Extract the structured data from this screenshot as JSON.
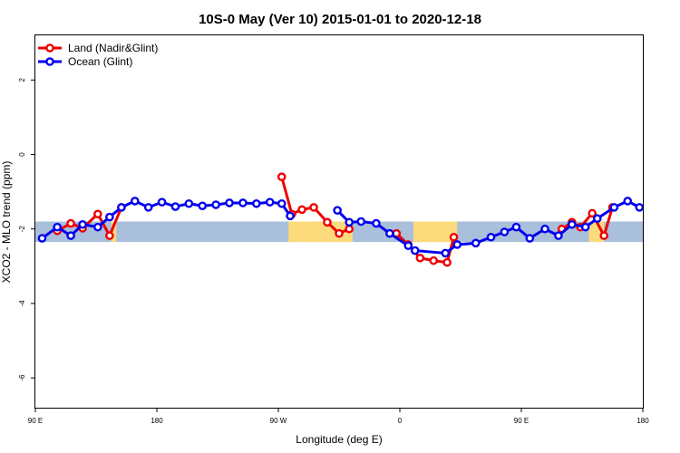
{
  "chart_data": {
    "type": "line",
    "title": "10S-0 May (Ver 10)   2015-01-01 to 2020-12-18",
    "xlabel": "Longitude (deg E)",
    "ylabel": "XCO2 - MLO trend (ppm)",
    "xlim": [
      90,
      450
    ],
    "ylim": [
      -6.8,
      3.2
    ],
    "x_ticks": [
      {
        "value": 90,
        "label": "90 E"
      },
      {
        "value": 162,
        "label": "180"
      },
      {
        "value": 234,
        "label": "90 W"
      },
      {
        "value": 306,
        "label": "0"
      },
      {
        "value": 378,
        "label": "90 E"
      },
      {
        "value": 450,
        "label": "180"
      }
    ],
    "y_ticks": [
      {
        "value": 2,
        "label": "2"
      },
      {
        "value": 0,
        "label": "0"
      },
      {
        "value": -2,
        "label": "-2"
      },
      {
        "value": -4,
        "label": "-4"
      },
      {
        "value": -6,
        "label": "-6"
      }
    ],
    "band": {
      "y_min": -2.35,
      "y_max": -1.8,
      "color": "#a9bfdc"
    },
    "land_color": "#fcdb7c",
    "land_patches": [
      {
        "x_min": 135,
        "x_max": 138
      },
      {
        "x_min": 240,
        "x_max": 278
      },
      {
        "x_min": 314,
        "x_max": 340
      },
      {
        "x_min": 418,
        "x_max": 427
      }
    ],
    "legend": {
      "position": "top-left",
      "entries": [
        {
          "name": "Land (Nadir&Glint)",
          "color": "#ee0000"
        },
        {
          "name": "Ocean (Glint)",
          "color": "#0000ee"
        }
      ]
    },
    "series": [
      {
        "name": "Land (Nadir&Glint)",
        "color": "#ee0000",
        "segments": [
          [
            [
              103,
              -2.05
            ],
            [
              111,
              -1.85
            ],
            [
              118,
              -1.98
            ],
            [
              127,
              -1.6
            ],
            [
              134,
              -2.18
            ],
            [
              141,
              -1.42
            ]
          ],
          [
            [
              236,
              -0.6
            ],
            [
              242,
              -1.6
            ],
            [
              248,
              -1.48
            ],
            [
              255,
              -1.42
            ],
            [
              263,
              -1.82
            ],
            [
              270,
              -2.12
            ],
            [
              276,
              -2.0
            ]
          ],
          [
            [
              304,
              -2.12
            ],
            [
              311,
              -2.42
            ],
            [
              318,
              -2.78
            ],
            [
              326,
              -2.85
            ],
            [
              334,
              -2.9
            ],
            [
              338,
              -2.22
            ]
          ],
          [
            [
              402,
              -2.0
            ],
            [
              408,
              -1.82
            ],
            [
              413,
              -1.95
            ],
            [
              420,
              -1.58
            ],
            [
              427,
              -2.18
            ],
            [
              432,
              -1.42
            ]
          ]
        ]
      },
      {
        "name": "Ocean (Glint)",
        "color": "#0000ee",
        "segments": [
          [
            [
              94,
              -2.25
            ],
            [
              103,
              -1.95
            ],
            [
              111,
              -2.18
            ],
            [
              118,
              -1.88
            ],
            [
              127,
              -1.95
            ],
            [
              134,
              -1.68
            ],
            [
              141,
              -1.42
            ],
            [
              149,
              -1.25
            ],
            [
              157,
              -1.42
            ],
            [
              165,
              -1.28
            ],
            [
              173,
              -1.4
            ],
            [
              181,
              -1.32
            ],
            [
              189,
              -1.38
            ],
            [
              197,
              -1.35
            ],
            [
              205,
              -1.3
            ],
            [
              213,
              -1.3
            ],
            [
              221,
              -1.32
            ],
            [
              229,
              -1.28
            ],
            [
              236,
              -1.32
            ],
            [
              241,
              -1.65
            ]
          ],
          [
            [
              269,
              -1.5
            ],
            [
              276,
              -1.82
            ],
            [
              283,
              -1.8
            ],
            [
              292,
              -1.85
            ],
            [
              300,
              -2.12
            ],
            [
              311,
              -2.45
            ],
            [
              315,
              -2.58
            ],
            [
              333,
              -2.65
            ],
            [
              340,
              -2.42
            ],
            [
              351,
              -2.38
            ],
            [
              360,
              -2.22
            ],
            [
              368,
              -2.08
            ],
            [
              375,
              -1.95
            ],
            [
              383,
              -2.25
            ],
            [
              392,
              -2.0
            ],
            [
              400,
              -2.18
            ],
            [
              408,
              -1.88
            ],
            [
              416,
              -1.95
            ],
            [
              423,
              -1.72
            ],
            [
              433,
              -1.42
            ],
            [
              441,
              -1.25
            ],
            [
              448,
              -1.42
            ]
          ]
        ]
      }
    ]
  }
}
